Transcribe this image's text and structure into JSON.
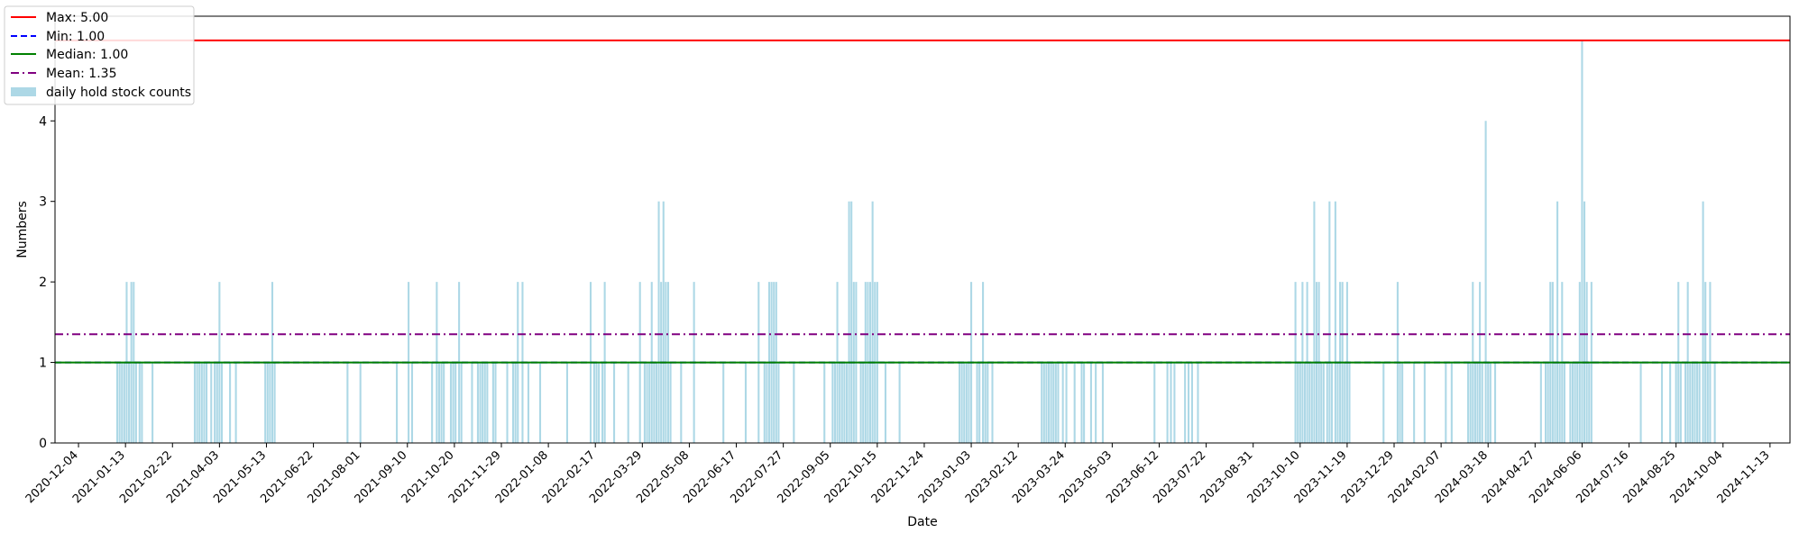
{
  "chart_data": {
    "type": "bar",
    "xlabel": "Date",
    "ylabel": "Numbers",
    "ylim": [
      0,
      5.3
    ],
    "xlim": [
      "2020-11-14",
      "2024-11-30"
    ],
    "yticks": [
      0,
      1,
      2,
      3,
      4
    ],
    "xticks": [
      "2020-12-04",
      "2021-01-13",
      "2021-02-22",
      "2021-04-03",
      "2021-05-13",
      "2021-06-22",
      "2021-08-01",
      "2021-09-10",
      "2021-10-20",
      "2021-11-29",
      "2022-01-08",
      "2022-02-17",
      "2022-03-29",
      "2022-05-08",
      "2022-06-17",
      "2022-07-27",
      "2022-09-05",
      "2022-10-15",
      "2022-11-24",
      "2023-01-03",
      "2023-02-12",
      "2023-03-24",
      "2023-05-03",
      "2023-06-12",
      "2023-07-22",
      "2023-08-31",
      "2023-10-10",
      "2023-11-19",
      "2023-12-29",
      "2024-02-07",
      "2024-03-18",
      "2024-04-27",
      "2024-06-06",
      "2024-07-16",
      "2024-08-25",
      "2024-10-04",
      "2024-11-13"
    ],
    "bar_color": "#add8e6",
    "series": [
      {
        "name": "daily hold stock counts",
        "points": [
          [
            "2021-01-06",
            1
          ],
          [
            "2021-01-08",
            1
          ],
          [
            "2021-01-10",
            1
          ],
          [
            "2021-01-12",
            1
          ],
          [
            "2021-01-14",
            2
          ],
          [
            "2021-01-16",
            1
          ],
          [
            "2021-01-18",
            2
          ],
          [
            "2021-01-20",
            2
          ],
          [
            "2021-01-22",
            1
          ],
          [
            "2021-01-25",
            1
          ],
          [
            "2021-01-27",
            1
          ],
          [
            "2021-02-05",
            1
          ],
          [
            "2021-03-13",
            1
          ],
          [
            "2021-03-15",
            1
          ],
          [
            "2021-03-17",
            1
          ],
          [
            "2021-03-19",
            1
          ],
          [
            "2021-03-21",
            1
          ],
          [
            "2021-03-23",
            1
          ],
          [
            "2021-03-27",
            1
          ],
          [
            "2021-03-30",
            1
          ],
          [
            "2021-04-01",
            1
          ],
          [
            "2021-04-03",
            2
          ],
          [
            "2021-04-05",
            1
          ],
          [
            "2021-04-12",
            1
          ],
          [
            "2021-04-17",
            1
          ],
          [
            "2021-05-12",
            1
          ],
          [
            "2021-05-14",
            1
          ],
          [
            "2021-05-16",
            1
          ],
          [
            "2021-05-18",
            2
          ],
          [
            "2021-05-20",
            1
          ],
          [
            "2021-07-21",
            1
          ],
          [
            "2021-08-01",
            1
          ],
          [
            "2021-09-01",
            1
          ],
          [
            "2021-09-11",
            2
          ],
          [
            "2021-09-14",
            1
          ],
          [
            "2021-10-01",
            1
          ],
          [
            "2021-10-05",
            2
          ],
          [
            "2021-10-07",
            1
          ],
          [
            "2021-10-09",
            1
          ],
          [
            "2021-10-11",
            1
          ],
          [
            "2021-10-17",
            1
          ],
          [
            "2021-10-19",
            1
          ],
          [
            "2021-10-21",
            1
          ],
          [
            "2021-10-24",
            2
          ],
          [
            "2021-10-26",
            1
          ],
          [
            "2021-11-04",
            1
          ],
          [
            "2021-11-09",
            1
          ],
          [
            "2021-11-11",
            1
          ],
          [
            "2021-11-13",
            1
          ],
          [
            "2021-11-15",
            1
          ],
          [
            "2021-11-17",
            1
          ],
          [
            "2021-11-22",
            1
          ],
          [
            "2021-11-24",
            1
          ],
          [
            "2021-12-04",
            1
          ],
          [
            "2021-12-09",
            1
          ],
          [
            "2021-12-11",
            1
          ],
          [
            "2021-12-13",
            2
          ],
          [
            "2021-12-17",
            2
          ],
          [
            "2021-12-22",
            1
          ],
          [
            "2022-01-01",
            1
          ],
          [
            "2022-01-24",
            1
          ],
          [
            "2022-02-13",
            2
          ],
          [
            "2022-02-16",
            1
          ],
          [
            "2022-02-18",
            1
          ],
          [
            "2022-02-20",
            1
          ],
          [
            "2022-02-23",
            1
          ],
          [
            "2022-02-25",
            2
          ],
          [
            "2022-03-05",
            1
          ],
          [
            "2022-03-17",
            1
          ],
          [
            "2022-03-27",
            2
          ],
          [
            "2022-03-31",
            1
          ],
          [
            "2022-04-02",
            1
          ],
          [
            "2022-04-04",
            1
          ],
          [
            "2022-04-06",
            2
          ],
          [
            "2022-04-08",
            1
          ],
          [
            "2022-04-10",
            1
          ],
          [
            "2022-04-12",
            3
          ],
          [
            "2022-04-14",
            2
          ],
          [
            "2022-04-16",
            3
          ],
          [
            "2022-04-18",
            2
          ],
          [
            "2022-04-20",
            2
          ],
          [
            "2022-04-22",
            1
          ],
          [
            "2022-05-01",
            1
          ],
          [
            "2022-05-12",
            2
          ],
          [
            "2022-06-06",
            1
          ],
          [
            "2022-06-25",
            1
          ],
          [
            "2022-07-06",
            2
          ],
          [
            "2022-07-11",
            1
          ],
          [
            "2022-07-13",
            1
          ],
          [
            "2022-07-15",
            2
          ],
          [
            "2022-07-17",
            2
          ],
          [
            "2022-07-19",
            2
          ],
          [
            "2022-07-21",
            2
          ],
          [
            "2022-07-23",
            1
          ],
          [
            "2022-08-05",
            1
          ],
          [
            "2022-08-31",
            1
          ],
          [
            "2022-09-07",
            1
          ],
          [
            "2022-09-09",
            1
          ],
          [
            "2022-09-11",
            2
          ],
          [
            "2022-09-13",
            1
          ],
          [
            "2022-09-15",
            1
          ],
          [
            "2022-09-17",
            1
          ],
          [
            "2022-09-19",
            1
          ],
          [
            "2022-09-21",
            3
          ],
          [
            "2022-09-23",
            3
          ],
          [
            "2022-09-25",
            2
          ],
          [
            "2022-09-27",
            2
          ],
          [
            "2022-10-01",
            1
          ],
          [
            "2022-10-03",
            1
          ],
          [
            "2022-10-05",
            2
          ],
          [
            "2022-10-07",
            2
          ],
          [
            "2022-10-09",
            2
          ],
          [
            "2022-10-11",
            3
          ],
          [
            "2022-10-13",
            2
          ],
          [
            "2022-10-15",
            2
          ],
          [
            "2022-10-22",
            1
          ],
          [
            "2022-11-03",
            1
          ],
          [
            "2022-12-24",
            1
          ],
          [
            "2022-12-26",
            1
          ],
          [
            "2022-12-28",
            1
          ],
          [
            "2022-12-30",
            1
          ],
          [
            "2023-01-01",
            1
          ],
          [
            "2023-01-03",
            2
          ],
          [
            "2023-01-08",
            1
          ],
          [
            "2023-01-10",
            1
          ],
          [
            "2023-01-13",
            2
          ],
          [
            "2023-01-15",
            1
          ],
          [
            "2023-01-17",
            1
          ],
          [
            "2023-01-21",
            1
          ],
          [
            "2023-03-04",
            1
          ],
          [
            "2023-03-06",
            1
          ],
          [
            "2023-03-08",
            1
          ],
          [
            "2023-03-10",
            1
          ],
          [
            "2023-03-12",
            1
          ],
          [
            "2023-03-14",
            1
          ],
          [
            "2023-03-16",
            1
          ],
          [
            "2023-03-18",
            1
          ],
          [
            "2023-03-22",
            1
          ],
          [
            "2023-03-25",
            1
          ],
          [
            "2023-04-01",
            1
          ],
          [
            "2023-04-07",
            1
          ],
          [
            "2023-04-09",
            1
          ],
          [
            "2023-04-15",
            1
          ],
          [
            "2023-04-19",
            1
          ],
          [
            "2023-04-25",
            1
          ],
          [
            "2023-06-08",
            1
          ],
          [
            "2023-06-19",
            1
          ],
          [
            "2023-06-22",
            1
          ],
          [
            "2023-06-25",
            1
          ],
          [
            "2023-07-04",
            1
          ],
          [
            "2023-07-07",
            1
          ],
          [
            "2023-07-10",
            1
          ],
          [
            "2023-07-15",
            1
          ],
          [
            "2023-10-06",
            2
          ],
          [
            "2023-10-08",
            1
          ],
          [
            "2023-10-10",
            1
          ],
          [
            "2023-10-12",
            2
          ],
          [
            "2023-10-14",
            1
          ],
          [
            "2023-10-16",
            2
          ],
          [
            "2023-10-18",
            1
          ],
          [
            "2023-10-20",
            1
          ],
          [
            "2023-10-22",
            3
          ],
          [
            "2023-10-24",
            2
          ],
          [
            "2023-10-26",
            2
          ],
          [
            "2023-10-28",
            1
          ],
          [
            "2023-10-30",
            1
          ],
          [
            "2023-11-02",
            1
          ],
          [
            "2023-11-04",
            3
          ],
          [
            "2023-11-06",
            1
          ],
          [
            "2023-11-09",
            3
          ],
          [
            "2023-11-11",
            1
          ],
          [
            "2023-11-13",
            2
          ],
          [
            "2023-11-15",
            2
          ],
          [
            "2023-11-17",
            1
          ],
          [
            "2023-11-19",
            2
          ],
          [
            "2023-11-21",
            1
          ],
          [
            "2023-12-20",
            1
          ],
          [
            "2024-01-01",
            2
          ],
          [
            "2024-01-03",
            1
          ],
          [
            "2024-01-05",
            1
          ],
          [
            "2024-01-15",
            1
          ],
          [
            "2024-01-24",
            1
          ],
          [
            "2024-02-11",
            1
          ],
          [
            "2024-02-16",
            1
          ],
          [
            "2024-03-01",
            1
          ],
          [
            "2024-03-03",
            1
          ],
          [
            "2024-03-05",
            2
          ],
          [
            "2024-03-07",
            1
          ],
          [
            "2024-03-09",
            1
          ],
          [
            "2024-03-11",
            2
          ],
          [
            "2024-03-13",
            1
          ],
          [
            "2024-03-16",
            4
          ],
          [
            "2024-03-18",
            1
          ],
          [
            "2024-03-20",
            1
          ],
          [
            "2024-03-24",
            1
          ],
          [
            "2024-05-02",
            1
          ],
          [
            "2024-05-06",
            1
          ],
          [
            "2024-05-08",
            1
          ],
          [
            "2024-05-10",
            2
          ],
          [
            "2024-05-12",
            2
          ],
          [
            "2024-05-14",
            1
          ],
          [
            "2024-05-16",
            3
          ],
          [
            "2024-05-18",
            1
          ],
          [
            "2024-05-20",
            2
          ],
          [
            "2024-05-22",
            1
          ],
          [
            "2024-05-27",
            1
          ],
          [
            "2024-05-29",
            1
          ],
          [
            "2024-05-31",
            1
          ],
          [
            "2024-06-02",
            1
          ],
          [
            "2024-06-04",
            2
          ],
          [
            "2024-06-06",
            5
          ],
          [
            "2024-06-08",
            3
          ],
          [
            "2024-06-10",
            2
          ],
          [
            "2024-06-12",
            1
          ],
          [
            "2024-06-14",
            2
          ],
          [
            "2024-07-26",
            1
          ],
          [
            "2024-08-13",
            1
          ],
          [
            "2024-08-20",
            1
          ],
          [
            "2024-08-25",
            1
          ],
          [
            "2024-08-27",
            2
          ],
          [
            "2024-08-29",
            1
          ],
          [
            "2024-09-02",
            1
          ],
          [
            "2024-09-04",
            2
          ],
          [
            "2024-09-06",
            1
          ],
          [
            "2024-09-08",
            1
          ],
          [
            "2024-09-10",
            1
          ],
          [
            "2024-09-12",
            1
          ],
          [
            "2024-09-14",
            1
          ],
          [
            "2024-09-17",
            3
          ],
          [
            "2024-09-19",
            2
          ],
          [
            "2024-09-21",
            1
          ],
          [
            "2024-09-23",
            2
          ],
          [
            "2024-09-27",
            1
          ]
        ]
      }
    ],
    "reference_lines": [
      {
        "label": "Max: 5.00",
        "value": 5.0,
        "color": "#ff0000",
        "style": "solid"
      },
      {
        "label": "Min: 1.00",
        "value": 1.0,
        "color": "#0000ff",
        "style": "dashed"
      },
      {
        "label": "Median: 1.00",
        "value": 1.0,
        "color": "#008000",
        "style": "solid"
      },
      {
        "label": "Mean: 1.35",
        "value": 1.35,
        "color": "#800080",
        "style": "dashdot"
      }
    ],
    "legend": {
      "placement": "top-left",
      "entries": [
        "Max: 5.00",
        "Min: 1.00",
        "Median: 1.00",
        "Mean: 1.35",
        "daily hold stock counts"
      ]
    }
  }
}
